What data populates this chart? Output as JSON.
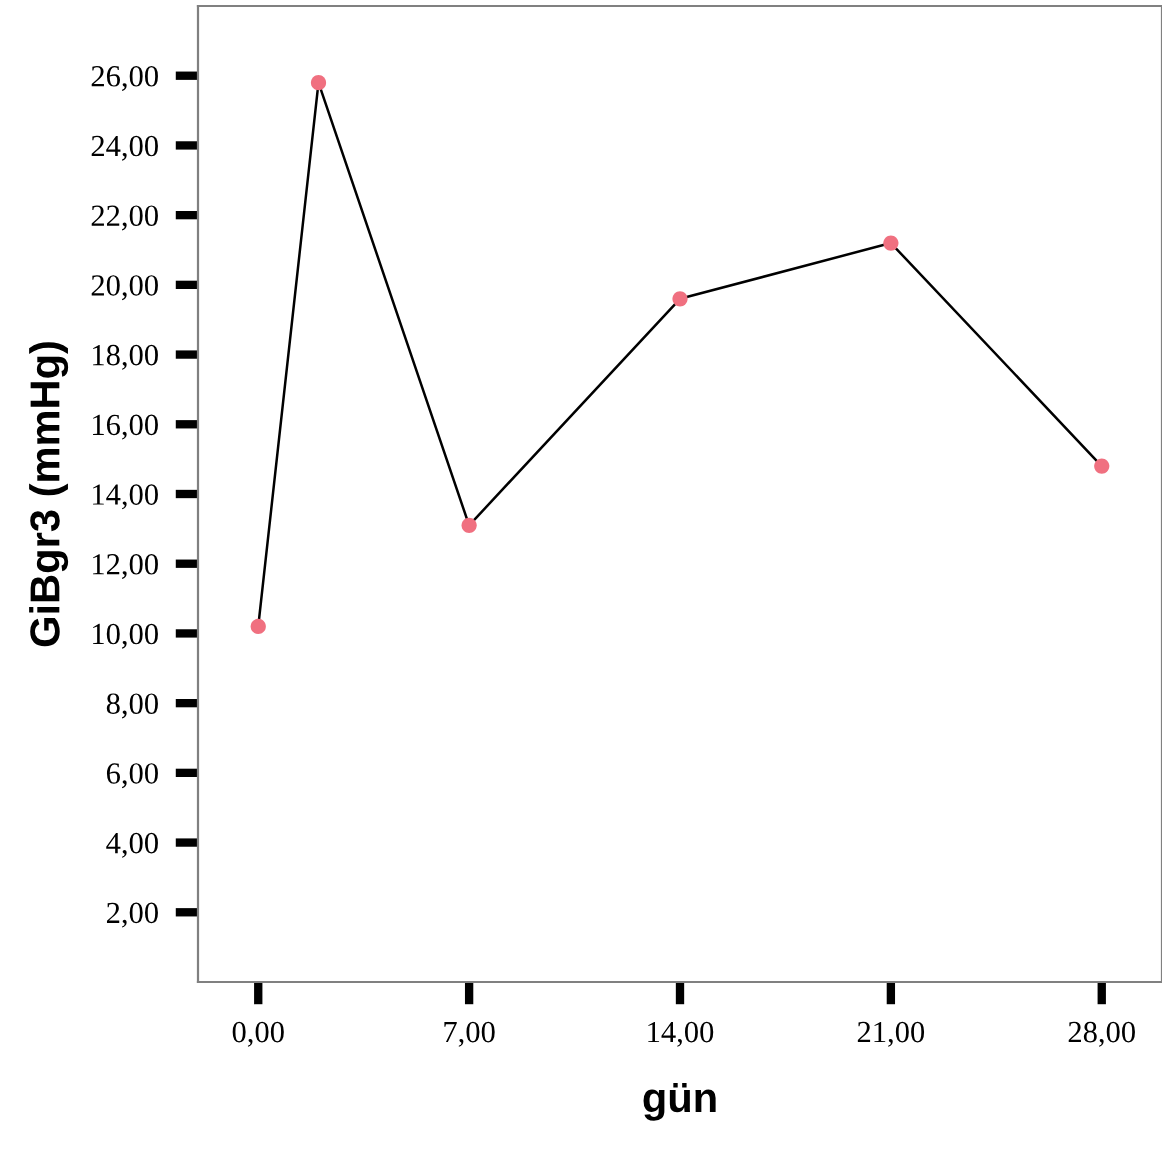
{
  "chart_data": {
    "type": "line",
    "xlabel": "gün",
    "ylabel": "GiBgr3 (mmHg)",
    "x": [
      0,
      2,
      7,
      14,
      21,
      28
    ],
    "series": [
      {
        "color": "#000000",
        "colors": [
          "#f07080",
          "#f07080",
          "#f07080",
          "#f07080",
          "#f07080",
          "#f07080"
        ],
        "values": [
          10.2,
          25.8,
          13.1,
          19.6,
          21.2,
          14.8
        ]
      }
    ],
    "marker": "circle",
    "line_style": "solid",
    "xlim": [
      -2,
      30
    ],
    "ylim": [
      0,
      28
    ],
    "xticks": [
      {
        "value": 0,
        "label": "0,00"
      },
      {
        "value": 7,
        "label": "7,00"
      },
      {
        "value": 14,
        "label": "14,00"
      },
      {
        "value": 21,
        "label": "21,00"
      },
      {
        "value": 28,
        "label": "28,00"
      }
    ],
    "yticks": [
      {
        "value": 2,
        "label": "2,00"
      },
      {
        "value": 4,
        "label": "4,00"
      },
      {
        "value": 6,
        "label": "6,00"
      },
      {
        "value": 8,
        "label": "8,00"
      },
      {
        "value": 10,
        "label": "10,00"
      },
      {
        "value": 12,
        "label": "12,00"
      },
      {
        "value": 14,
        "label": "14,00"
      },
      {
        "value": 16,
        "label": "16,00"
      },
      {
        "value": 18,
        "label": "18,00"
      },
      {
        "value": 20,
        "label": "20,00"
      },
      {
        "value": 22,
        "label": "22,00"
      },
      {
        "value": 24,
        "label": "24,00"
      },
      {
        "value": 26,
        "label": "26,00"
      }
    ]
  }
}
